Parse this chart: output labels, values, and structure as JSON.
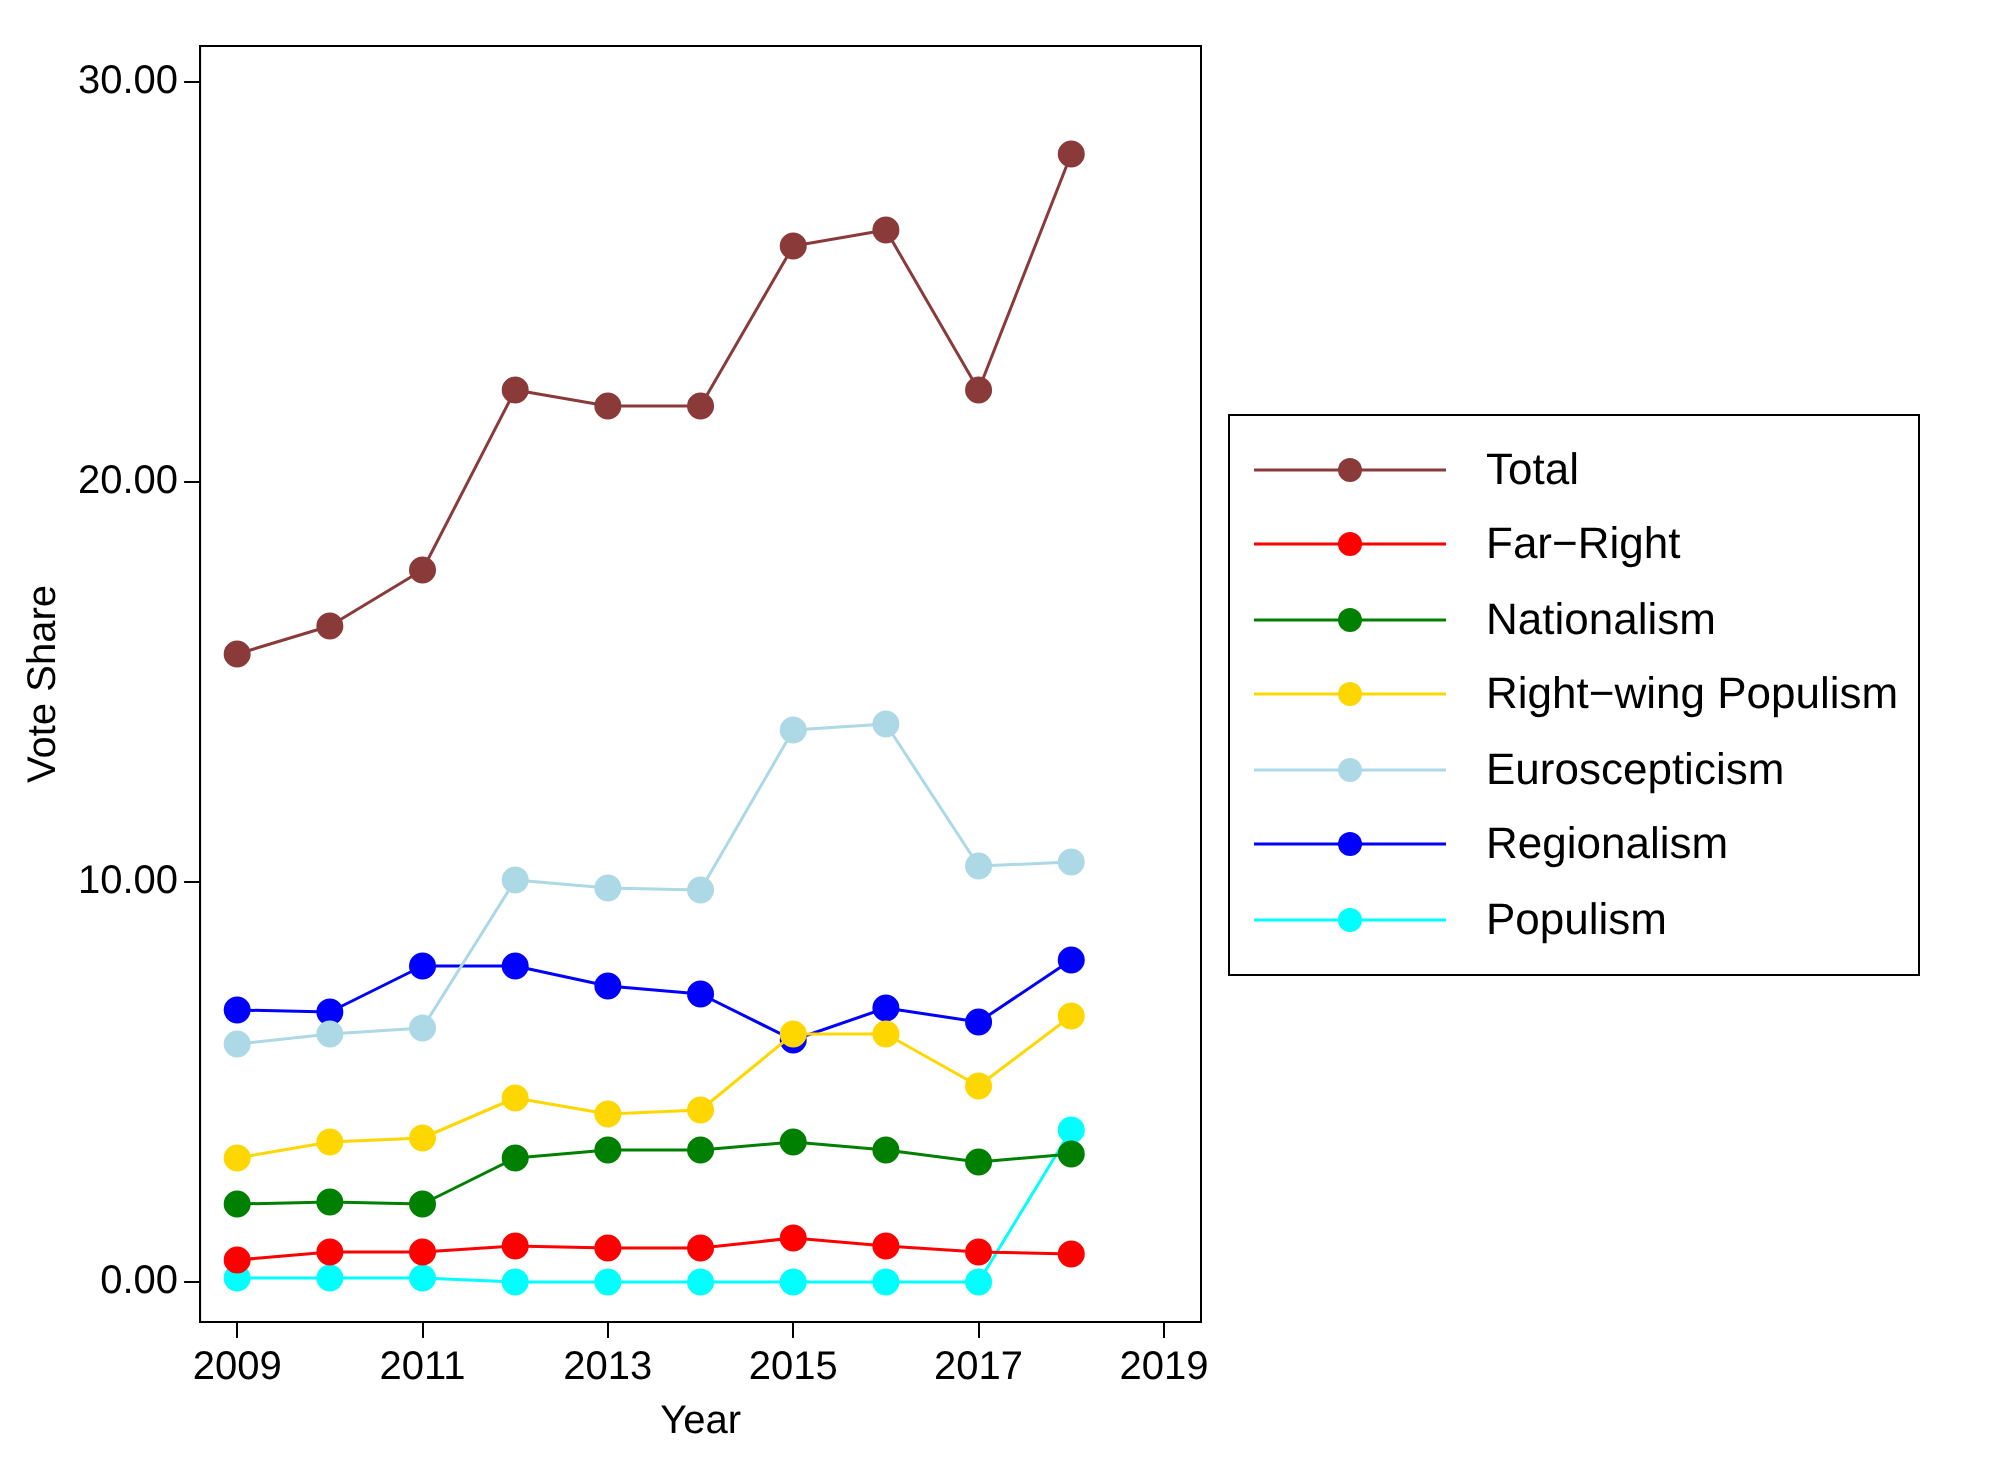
{
  "chart_data": {
    "type": "line",
    "xlabel": "Year",
    "ylabel": "Vote Share",
    "x": [
      2009,
      2010,
      2011,
      2012,
      2013,
      2014,
      2015,
      2016,
      2017,
      2018
    ],
    "xlim": [
      2008.6,
      2019.4
    ],
    "xticks": [
      2009,
      2011,
      2013,
      2015,
      2017,
      2019
    ],
    "ylim": [
      -1,
      30.9
    ],
    "yticks": [
      {
        "value": 0,
        "label": "0.00"
      },
      {
        "value": 10,
        "label": "10.00"
      },
      {
        "value": 20,
        "label": "20.00"
      },
      {
        "value": 30,
        "label": "30.00"
      }
    ],
    "grid": false,
    "legend": "right",
    "marker": "circle",
    "line_style": "solid",
    "series": [
      {
        "name": "Total",
        "color": "#8b3a3a",
        "values": [
          15.7,
          16.4,
          17.8,
          22.3,
          21.9,
          21.9,
          25.9,
          26.3,
          22.3,
          28.2
        ]
      },
      {
        "name": "Far−Right",
        "color": "#ff0000",
        "values": [
          0.55,
          0.75,
          0.75,
          0.9,
          0.85,
          0.85,
          1.1,
          0.9,
          0.75,
          0.7
        ]
      },
      {
        "name": "Nationalism",
        "color": "#008000",
        "values": [
          1.95,
          2.0,
          1.95,
          3.1,
          3.3,
          3.3,
          3.5,
          3.3,
          3.0,
          3.2
        ]
      },
      {
        "name": "Right−wing Populism",
        "color": "#ffd700",
        "values": [
          3.1,
          3.5,
          3.6,
          4.6,
          4.2,
          4.3,
          6.2,
          6.2,
          4.9,
          6.65
        ]
      },
      {
        "name": "Euroscepticism",
        "color": "#add8e6",
        "values": [
          5.95,
          6.2,
          6.35,
          10.05,
          9.85,
          9.8,
          13.8,
          13.95,
          10.4,
          10.5
        ]
      },
      {
        "name": "Regionalism",
        "color": "#0000ff",
        "values": [
          6.8,
          6.75,
          7.9,
          7.9,
          7.4,
          7.2,
          6.05,
          6.85,
          6.5,
          8.05
        ]
      },
      {
        "name": "Populism",
        "color": "#00ffff",
        "values": [
          0.1,
          0.1,
          0.1,
          0,
          0,
          0,
          0,
          0,
          0,
          3.8
        ]
      }
    ]
  }
}
